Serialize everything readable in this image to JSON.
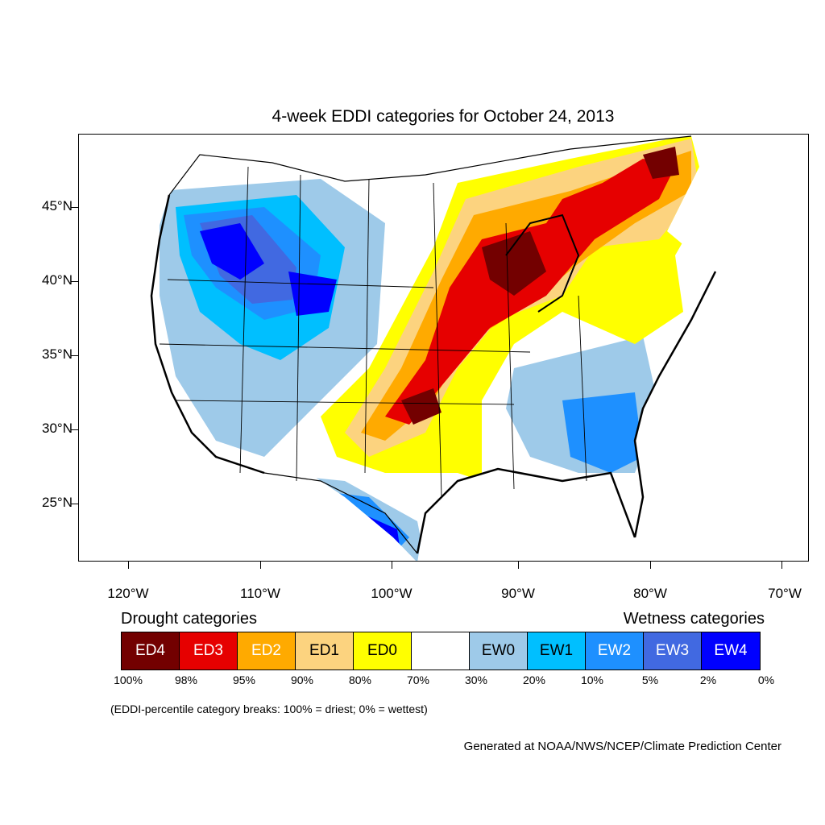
{
  "title": "4-week EDDI categories for October 24, 2013",
  "latitude_labels": [
    "45°N",
    "40°N",
    "35°N",
    "30°N",
    "25°N"
  ],
  "longitude_labels": [
    "120°W",
    "110°W",
    "100°W",
    "90°W",
    "80°W",
    "70°W"
  ],
  "legend": {
    "drought_heading": "Drought categories",
    "wetness_heading": "Wetness categories",
    "categories": [
      {
        "label": "ED4",
        "color": "#730000",
        "text_color": "#ffffff"
      },
      {
        "label": "ED3",
        "color": "#e60000",
        "text_color": "#ffffff"
      },
      {
        "label": "ED2",
        "color": "#ffaa00",
        "text_color": "#ffffff"
      },
      {
        "label": "ED1",
        "color": "#fcd37f",
        "text_color": "#000000"
      },
      {
        "label": "ED0",
        "color": "#ffff00",
        "text_color": "#000000"
      },
      {
        "label": "",
        "color": "#ffffff",
        "text_color": "#000000"
      },
      {
        "label": "EW0",
        "color": "#9ecae9",
        "text_color": "#000000"
      },
      {
        "label": "EW1",
        "color": "#00bfff",
        "text_color": "#000000"
      },
      {
        "label": "EW2",
        "color": "#1e90ff",
        "text_color": "#ffffff"
      },
      {
        "label": "EW3",
        "color": "#4169e1",
        "text_color": "#ffffff"
      },
      {
        "label": "EW4",
        "color": "#0000ff",
        "text_color": "#ffffff"
      }
    ],
    "breaks": [
      "100%",
      "98%",
      "95%",
      "90%",
      "80%",
      "70%",
      "30%",
      "20%",
      "10%",
      "5%",
      "2%",
      "0%"
    ]
  },
  "note": "(EDDI-percentile category breaks: 100% = driest; 0% = wettest)",
  "credit": "Generated at NOAA/NWS/NCEP/Climate Prediction Center"
}
